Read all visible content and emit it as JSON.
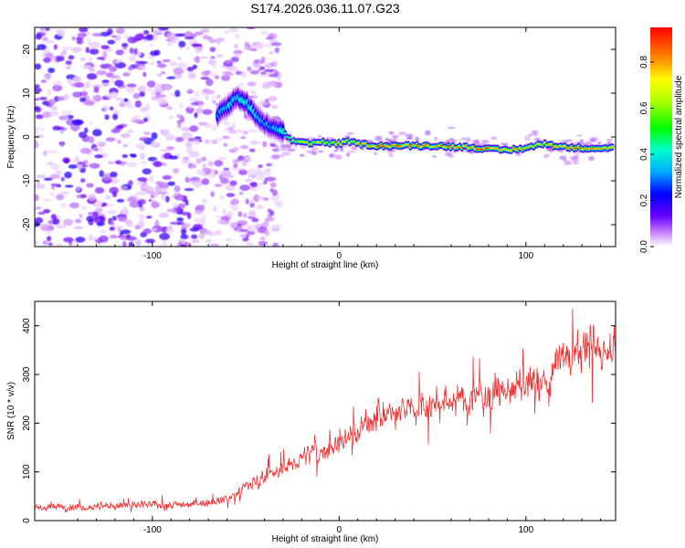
{
  "title": "S174.2026.036.11.07.G23",
  "chart_data": [
    {
      "type": "heatmap",
      "name": "spectrogram",
      "xlabel": "Height of straight line (km)",
      "ylabel": "Frequency (Hz)",
      "xlim": [
        -163,
        148
      ],
      "ylim": [
        -25,
        25
      ],
      "xticks": [
        "-100",
        "0",
        "100"
      ],
      "yticks": [
        "20",
        "10",
        "0",
        "-10",
        "-20"
      ],
      "xtick_values": [
        -100,
        0,
        100
      ],
      "ytick_values": [
        20,
        10,
        0,
        -10,
        -20
      ],
      "colorbar": {
        "label": "Normalized spectral amplitude",
        "ticks": [
          "0.8",
          "0.6",
          "0.4",
          "0.2",
          "0.0"
        ],
        "tick_values": [
          0.8,
          0.6,
          0.4,
          0.2,
          0.0
        ],
        "range": [
          0,
          0.95
        ]
      },
      "noise_region_x": [
        -163,
        -37
      ],
      "signal_track": {
        "x": [
          -65,
          -60,
          -55,
          -50,
          -45,
          -40,
          -35,
          -30,
          -25,
          -20,
          -15,
          -10,
          -5,
          0,
          5,
          10,
          20,
          30,
          40,
          50,
          60,
          70,
          80,
          90,
          100,
          110,
          120,
          130,
          140,
          147
        ],
        "freq": [
          5,
          7,
          9,
          8,
          5,
          3,
          2,
          1,
          -1,
          -1,
          -1.5,
          -1,
          -1.5,
          -1.5,
          -1,
          -1.5,
          -2,
          -2,
          -2,
          -2,
          -2.2,
          -2.3,
          -2.8,
          -3,
          -2.5,
          -1.5,
          -2.3,
          -2.5,
          -2.5,
          -2.5
        ],
        "amp": [
          0.3,
          0.4,
          0.35,
          0.45,
          0.4,
          0.3,
          0.35,
          0.4,
          0.6,
          0.7,
          0.75,
          0.65,
          0.7,
          0.8,
          0.7,
          0.8,
          0.9,
          0.9,
          0.85,
          0.8,
          0.9,
          0.85,
          0.9,
          0.85,
          0.8,
          0.75,
          0.9,
          0.85,
          0.8,
          0.7
        ]
      }
    },
    {
      "type": "line",
      "name": "snr",
      "xlabel": "Height of straight line (km)",
      "ylabel": "SNR (10 * v/v)",
      "xlim": [
        -163,
        148
      ],
      "ylim": [
        0,
        450
      ],
      "xticks": [
        "-100",
        "0",
        "100"
      ],
      "yticks": [
        "400",
        "300",
        "200",
        "100",
        "0"
      ],
      "xtick_values": [
        -100,
        0,
        100
      ],
      "ytick_values": [
        400,
        300,
        200,
        100,
        0
      ],
      "color": "#ee3333",
      "series": [
        {
          "name": "SNR",
          "x": [
            -163,
            -150,
            -140,
            -130,
            -120,
            -110,
            -100,
            -90,
            -80,
            -70,
            -60,
            -55,
            -50,
            -45,
            -40,
            -35,
            -30,
            -25,
            -20,
            -15,
            -10,
            -5,
            0,
            5,
            10,
            15,
            20,
            25,
            30,
            35,
            40,
            50,
            60,
            70,
            80,
            90,
            100,
            105,
            110,
            113,
            115,
            120,
            130,
            140,
            148
          ],
          "y": [
            25,
            28,
            28,
            29,
            30,
            31,
            32,
            33,
            34,
            38,
            45,
            55,
            70,
            80,
            90,
            95,
            105,
            115,
            130,
            140,
            140,
            150,
            160,
            170,
            185,
            200,
            210,
            215,
            220,
            225,
            230,
            240,
            245,
            250,
            260,
            265,
            280,
            285,
            280,
            260,
            330,
            335,
            345,
            350,
            360
          ]
        }
      ]
    }
  ]
}
